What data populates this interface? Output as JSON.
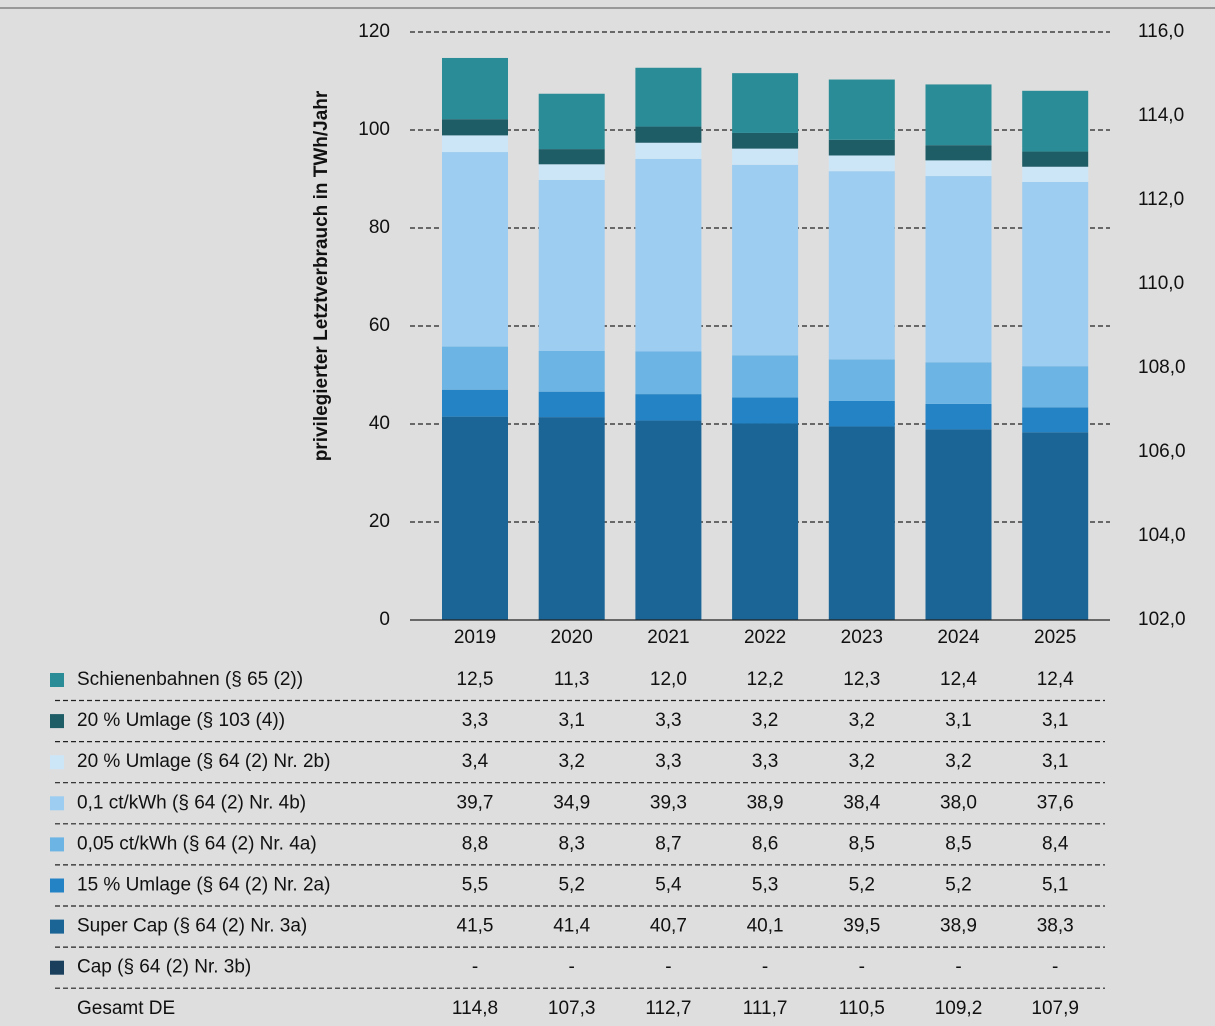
{
  "chart_data": {
    "type": "bar",
    "stacked": true,
    "y_axis_label": "privilegierter Letztverbrauch in TWh/Jahr",
    "categories": [
      "2019",
      "2020",
      "2021",
      "2022",
      "2023",
      "2024",
      "2025"
    ],
    "ylim": [
      0,
      120
    ],
    "yticks": [
      0,
      20,
      40,
      60,
      80,
      100,
      120
    ],
    "grid": true,
    "y2lim": [
      102,
      116
    ],
    "y2ticks": [
      {
        "value": 102,
        "label": "102,0"
      },
      {
        "value": 104,
        "label": "104,0"
      },
      {
        "value": 106,
        "label": "106,0"
      },
      {
        "value": 108,
        "label": "108,0"
      },
      {
        "value": 110,
        "label": "110,0"
      },
      {
        "value": 112,
        "label": "112,0"
      },
      {
        "value": 114,
        "label": "114,0"
      },
      {
        "value": 116,
        "label": "116,0"
      }
    ],
    "series": [
      {
        "name": "Schienenbahnen (§ 65 (2))",
        "color": "#2a8c96",
        "values": [
          12.5,
          11.3,
          12.0,
          12.2,
          12.3,
          12.4,
          12.4
        ],
        "value_labels": [
          "12,5",
          "11,3",
          "12,0",
          "12,2",
          "12,3",
          "12,4",
          "12,4"
        ]
      },
      {
        "name": "20 % Umlage (§ 103 (4))",
        "color": "#1e5c66",
        "values": [
          3.3,
          3.1,
          3.3,
          3.2,
          3.2,
          3.1,
          3.1
        ],
        "value_labels": [
          "3,3",
          "3,1",
          "3,3",
          "3,2",
          "3,2",
          "3,1",
          "3,1"
        ]
      },
      {
        "name": "20 % Umlage (§ 64 (2) Nr. 2b)",
        "color": "#cce6f7",
        "values": [
          3.4,
          3.2,
          3.3,
          3.3,
          3.2,
          3.2,
          3.1
        ],
        "value_labels": [
          "3,4",
          "3,2",
          "3,3",
          "3,3",
          "3,2",
          "3,2",
          "3,1"
        ]
      },
      {
        "name": "0,1 ct/kWh (§ 64 (2) Nr. 4b)",
        "color": "#9dcdf0",
        "values": [
          39.7,
          34.9,
          39.3,
          38.9,
          38.4,
          38.0,
          37.6
        ],
        "value_labels": [
          "39,7",
          "34,9",
          "39,3",
          "38,9",
          "38,4",
          "38,0",
          "37,6"
        ]
      },
      {
        "name": "0,05 ct/kWh (§ 64 (2) Nr. 4a)",
        "color": "#6cb4e4",
        "values": [
          8.8,
          8.3,
          8.7,
          8.6,
          8.5,
          8.5,
          8.4
        ],
        "value_labels": [
          "8,8",
          "8,3",
          "8,7",
          "8,6",
          "8,5",
          "8,5",
          "8,4"
        ]
      },
      {
        "name": "15 % Umlage (§ 64 (2) Nr. 2a)",
        "color": "#2483c5",
        "values": [
          5.5,
          5.2,
          5.4,
          5.3,
          5.2,
          5.2,
          5.1
        ],
        "value_labels": [
          "5,5",
          "5,2",
          "5,4",
          "5,3",
          "5,2",
          "5,2",
          "5,1"
        ]
      },
      {
        "name": "Super Cap (§ 64 (2) Nr. 3a)",
        "color": "#1a6496",
        "values": [
          41.5,
          41.4,
          40.7,
          40.1,
          39.5,
          38.9,
          38.3
        ],
        "value_labels": [
          "41,5",
          "41,4",
          "40,7",
          "40,1",
          "39,5",
          "38,9",
          "38,3"
        ]
      },
      {
        "name": "Cap (§ 64 (2) Nr. 3b)",
        "color": "#1a3f5c",
        "values": [
          null,
          null,
          null,
          null,
          null,
          null,
          null
        ],
        "value_labels": [
          "-",
          "-",
          "-",
          "-",
          "-",
          "-",
          "-"
        ]
      }
    ],
    "total": {
      "name": "Gesamt DE",
      "values": [
        114.8,
        107.3,
        112.7,
        111.7,
        110.5,
        109.2,
        107.9
      ],
      "value_labels": [
        "114,8",
        "107,3",
        "112,7",
        "111,7",
        "110,5",
        "109,2",
        "107,9"
      ]
    }
  }
}
